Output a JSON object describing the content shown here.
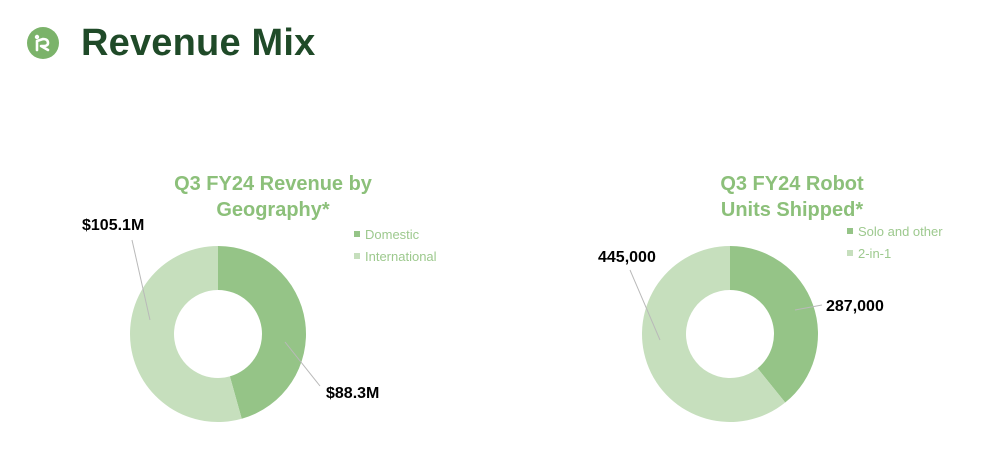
{
  "header": {
    "title": "Revenue Mix",
    "logo_icon": "irobot-r-logo-icon"
  },
  "colors": {
    "title": "#1f4a28",
    "chart_title": "#8cc07a",
    "dark_slice": "#95c487",
    "light_slice": "#c6dfbd",
    "legend_text": "#9dc98e"
  },
  "chart_data": [
    {
      "type": "pie",
      "title": "Q3 FY24 Revenue by Geography*",
      "title_lines": [
        "Q3 FY24 Revenue by",
        "Geography*"
      ],
      "units": "$M",
      "categories": [
        "Domestic",
        "International"
      ],
      "values": [
        88.3,
        105.1
      ],
      "data_labels": [
        "$88.3M",
        "$105.1M"
      ],
      "legend": {
        "placement": "right"
      }
    },
    {
      "type": "pie",
      "title": "Q3 FY24 Robot Units Shipped*",
      "title_lines": [
        "Q3 FY24 Robot",
        "Units Shipped*"
      ],
      "units": "units",
      "categories": [
        "Solo and other",
        "2-in-1"
      ],
      "values": [
        287000,
        445000
      ],
      "data_labels": [
        "287,000",
        "445,000"
      ],
      "legend": {
        "placement": "right"
      }
    }
  ]
}
